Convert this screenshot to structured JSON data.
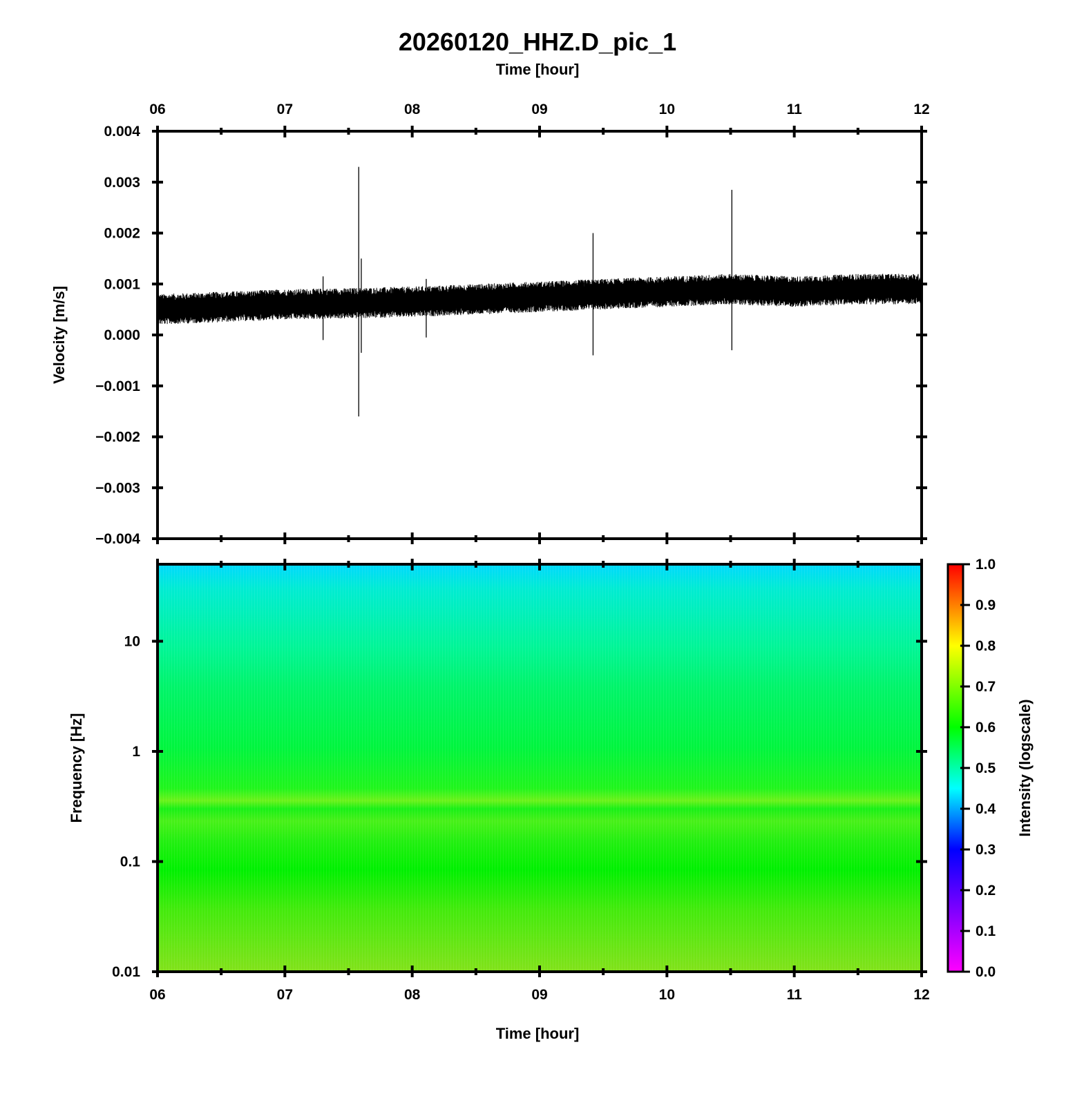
{
  "chart_data": [
    {
      "type": "line",
      "panel": "waveform",
      "title": "20260120_HHZ.D_pic_1",
      "xlabel": "Time [hour]",
      "ylabel": "Velocity [m/s]",
      "xlim": [
        6,
        12
      ],
      "ylim": [
        -0.004,
        0.004
      ],
      "x_ticks": [
        "06",
        "07",
        "08",
        "09",
        "10",
        "11",
        "12"
      ],
      "y_ticks": [
        "0.004",
        "0.003",
        "0.002",
        "0.001",
        "0.000",
        "−0.001",
        "−0.002",
        "−0.003",
        "−0.004"
      ],
      "series": [
        {
          "color": "#000000",
          "baseline": {
            "x": [
              6.0,
              6.5,
              7.0,
              7.5,
              8.0,
              8.5,
              9.0,
              9.5,
              10.0,
              10.5,
              11.0,
              11.5,
              12.0
            ],
            "center": [
              0.0005,
              0.00055,
              0.0006,
              0.00062,
              0.00065,
              0.0007,
              0.00075,
              0.0008,
              0.00085,
              0.0009,
              0.00085,
              0.0009,
              0.0009
            ],
            "noise_amplitude": 0.0003
          },
          "spikes": [
            {
              "x": 7.3,
              "max": 0.00115,
              "min": -0.0001
            },
            {
              "x": 7.58,
              "max": 0.0033,
              "min": -0.0016
            },
            {
              "x": 7.6,
              "max": 0.0015,
              "min": -0.00035
            },
            {
              "x": 8.11,
              "max": 0.0011,
              "min": -5e-05
            },
            {
              "x": 9.42,
              "max": 0.002,
              "min": -0.0004
            },
            {
              "x": 10.51,
              "max": 0.00285,
              "min": -0.0003
            }
          ]
        }
      ]
    },
    {
      "type": "heatmap",
      "panel": "spectrogram",
      "xlabel": "Time [hour]",
      "ylabel": "Frequency [Hz]",
      "xlim": [
        6,
        12
      ],
      "ylim": [
        0.01,
        50
      ],
      "y_scale": "log",
      "x_ticks": [
        "06",
        "07",
        "08",
        "09",
        "10",
        "11",
        "12"
      ],
      "y_ticks": [
        "10",
        "1",
        "0.1",
        "0.01"
      ],
      "colorbar": {
        "label": "Intensity (logscale)",
        "range": [
          0.0,
          1.0
        ],
        "ticks": [
          "1.0",
          "0.9",
          "0.8",
          "0.7",
          "0.6",
          "0.5",
          "0.4",
          "0.3",
          "0.2",
          "0.1",
          "0.0"
        ],
        "colormap": [
          "#ff00ff",
          "#0000ff",
          "#00ffff",
          "#00ff00",
          "#ffff00",
          "#ff0000"
        ]
      },
      "intensity_profile": [
        {
          "freq_hz": 50,
          "intensity": 0.44
        },
        {
          "freq_hz": 20,
          "intensity": 0.52
        },
        {
          "freq_hz": 10,
          "intensity": 0.58
        },
        {
          "freq_hz": 1,
          "intensity": 0.62
        },
        {
          "freq_hz": 0.4,
          "intensity": 0.66
        },
        {
          "freq_hz": 0.2,
          "intensity": 0.67
        },
        {
          "freq_hz": 0.1,
          "intensity": 0.63
        },
        {
          "freq_hz": 0.01,
          "intensity": 0.68
        }
      ]
    }
  ]
}
